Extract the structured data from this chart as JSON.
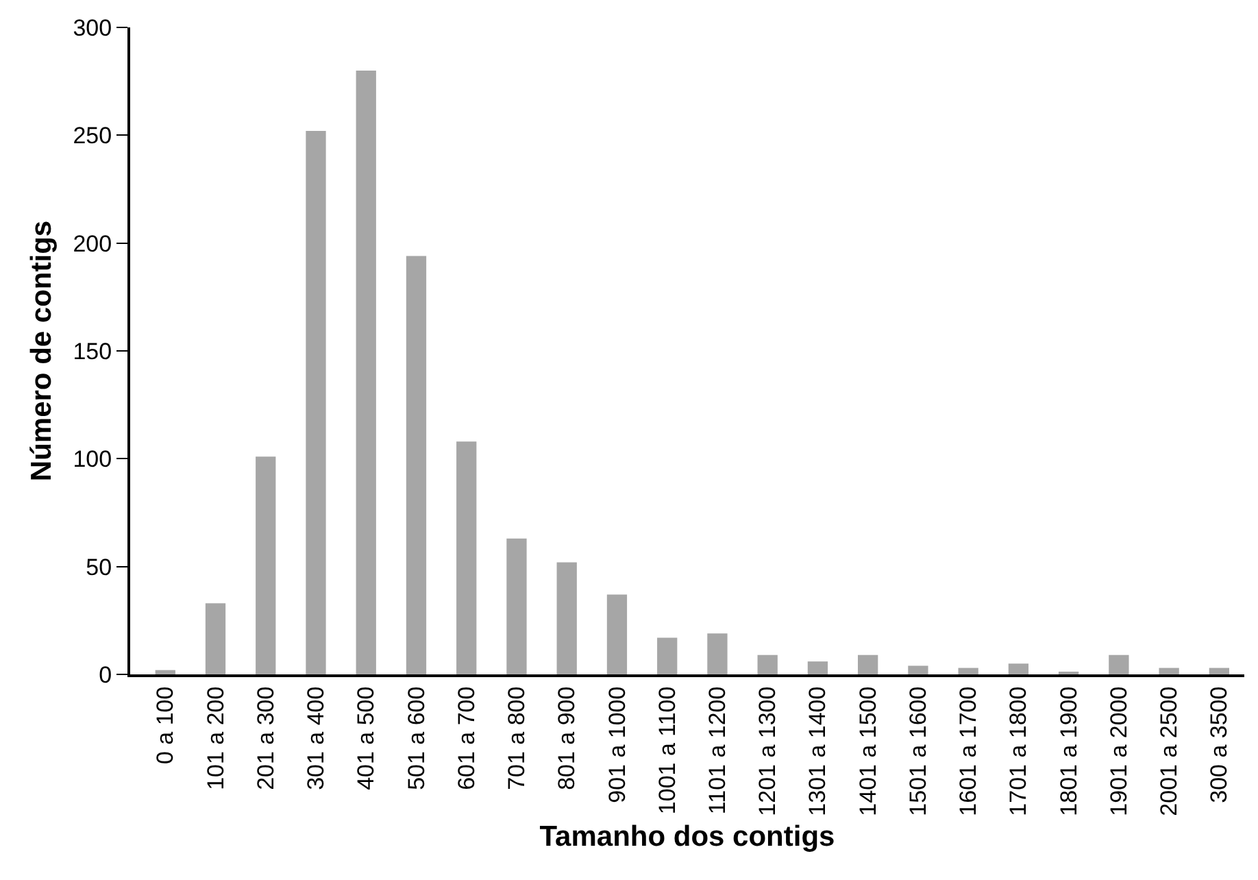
{
  "chart_data": {
    "type": "bar",
    "xlabel": "Tamanho dos contigs",
    "ylabel": "Número de contigs",
    "categories": [
      "0 a 100",
      "101 a 200",
      "201 a 300",
      "301 a 400",
      "401 a 500",
      "501 a 600",
      "601 a 700",
      "701 a 800",
      "801 a 900",
      "901 a 1000",
      "1001 a 1100",
      "1101 a 1200",
      "1201 a 1300",
      "1301 a 1400",
      "1401 a 1500",
      "1501 a 1600",
      "1601 a 1700",
      "1701 a 1800",
      "1801 a 1900",
      "1901 a 2000",
      "2001 a 2500",
      "300 a 3500"
    ],
    "values": [
      2,
      33,
      101,
      252,
      280,
      194,
      108,
      63,
      52,
      37,
      17,
      19,
      9,
      6,
      9,
      4,
      3,
      5,
      1,
      9,
      3,
      3
    ],
    "color": "#a6a6a6",
    "ylim": [
      0,
      300
    ],
    "yticks": [
      0,
      50,
      100,
      150,
      200,
      250,
      300
    ]
  }
}
